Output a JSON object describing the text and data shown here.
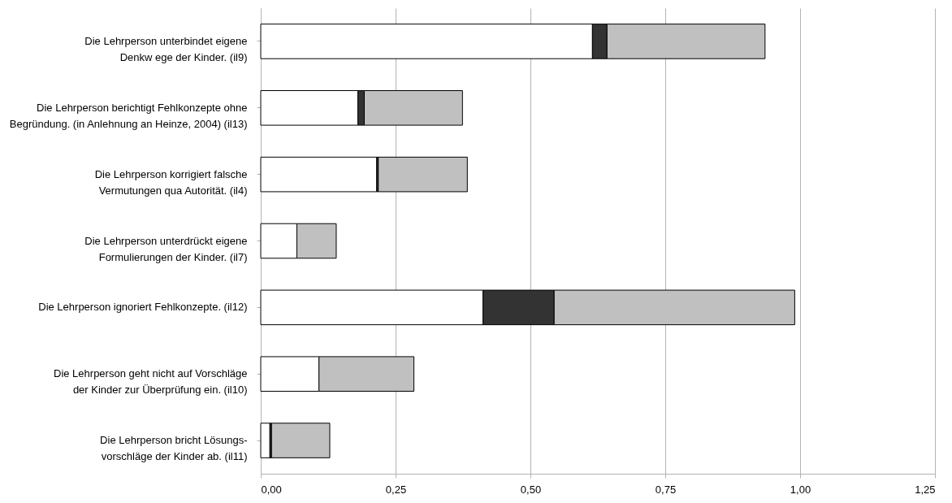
{
  "chart_data": {
    "type": "bar",
    "orientation": "horizontal",
    "stacked": true,
    "categories": [
      "Die Lehrperson unterbindet eigene\nDenkw ege der Kinder. (il9)",
      "Die Lehrperson berichtigt Fehlkonzepte ohne\nBegründung. (in Anlehnung an Heinze, 2004) (il13)",
      "Die Lehrperson korrigiert falsche\nVermutungen qua Autorität. (il4)",
      "Die Lehrperson unterdrückt eigene\nFormulierungen der Kinder. (il7)",
      "Die Lehrperson ignoriert Fehlkonzepte. (il12)",
      "Die Lehrperson geht nicht auf Vorschläge\nder Kinder zur Überprüfung ein. (il10)",
      "Die Lehrperson bricht Lösungs-\nvorschläge der Kinder ab. (il11)"
    ],
    "series": [
      {
        "color": "#ffffff",
        "values": [
          0.615,
          0.18,
          0.215,
          0.067,
          0.412,
          0.108,
          0.017
        ]
      },
      {
        "color": "#333333",
        "values": [
          0.027,
          0.012,
          0.003,
          null,
          0.132,
          null,
          0.003
        ]
      },
      {
        "color": "#c0c0c0",
        "values": [
          0.293,
          0.182,
          0.165,
          0.073,
          0.446,
          0.176,
          0.108
        ]
      }
    ],
    "xlim": [
      0,
      1.25
    ],
    "xticks": [
      {
        "value": 0,
        "label": "0,00"
      },
      {
        "value": 0.25,
        "label": "0,25"
      },
      {
        "value": 0.5,
        "label": "0,50"
      },
      {
        "value": 0.75,
        "label": "0,75"
      },
      {
        "value": 1,
        "label": "1,00"
      },
      {
        "value": 1.25,
        "label": "1,25"
      }
    ],
    "grid": "x"
  }
}
